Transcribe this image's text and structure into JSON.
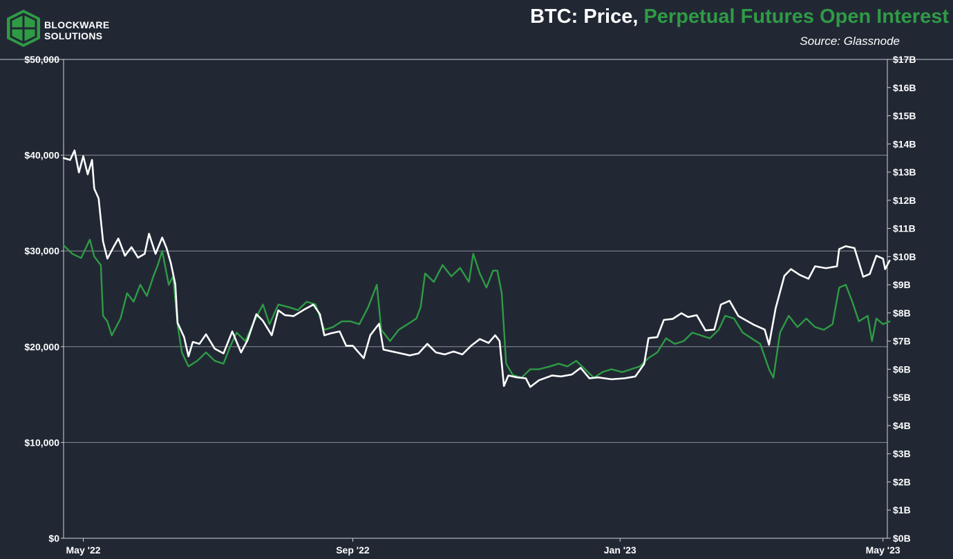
{
  "brand": {
    "line1": "BLOCKWARE",
    "line2": "SOLUTIONS"
  },
  "title": {
    "part1": "BTC: Price, ",
    "part2": "Perpetual Futures Open Interest"
  },
  "source": "Source: Glassnode",
  "colors": {
    "background": "#212834",
    "price": "#ffffff",
    "open_interest": "#2f9b45",
    "grid": "#8a8f99",
    "logo": "#2f9b45"
  },
  "chart_data": {
    "type": "line",
    "title": "BTC: Price, Perpetual Futures Open Interest",
    "grid": true,
    "x_ticks": [
      {
        "label": "May '22",
        "date": "2022-05-01"
      },
      {
        "label": "Sep '22",
        "date": "2022-09-01"
      },
      {
        "label": "Jan '23",
        "date": "2023-01-01"
      },
      {
        "label": "May '23",
        "date": "2023-05-01"
      }
    ],
    "xlim": [
      "2022-04-22",
      "2023-05-03"
    ],
    "y_left": {
      "ylim": [
        0,
        50000
      ],
      "ticks": [
        0,
        10000,
        20000,
        30000,
        40000,
        50000
      ],
      "tick_labels": [
        "$0",
        "$10,000",
        "$20,000",
        "$30,000",
        "$40,000",
        "$50,000"
      ]
    },
    "y_right": {
      "ylim": [
        0,
        17
      ],
      "ticks": [
        0,
        1,
        2,
        3,
        4,
        5,
        6,
        7,
        8,
        9,
        10,
        11,
        12,
        13,
        14,
        15,
        16,
        17
      ],
      "tick_labels": [
        "$0B",
        "$1B",
        "$2B",
        "$3B",
        "$4B",
        "$5B",
        "$6B",
        "$7B",
        "$8B",
        "$9B",
        "$10B",
        "$11B",
        "$12B",
        "$13B",
        "$14B",
        "$15B",
        "$16B",
        "$17B"
      ]
    },
    "series": [
      {
        "axis": "left",
        "color": "#ffffff",
        "points": [
          [
            "2022-04-22",
            39700
          ],
          [
            "2022-04-25",
            39500
          ],
          [
            "2022-04-27",
            40500
          ],
          [
            "2022-04-29",
            38200
          ],
          [
            "2022-05-01",
            39900
          ],
          [
            "2022-05-03",
            38000
          ],
          [
            "2022-05-05",
            39500
          ],
          [
            "2022-05-06",
            36500
          ],
          [
            "2022-05-08",
            35500
          ],
          [
            "2022-05-10",
            31000
          ],
          [
            "2022-05-12",
            29200
          ],
          [
            "2022-05-15",
            30500
          ],
          [
            "2022-05-17",
            31300
          ],
          [
            "2022-05-20",
            29500
          ],
          [
            "2022-05-23",
            30400
          ],
          [
            "2022-05-26",
            29300
          ],
          [
            "2022-05-29",
            29700
          ],
          [
            "2022-05-31",
            31800
          ],
          [
            "2022-06-03",
            29700
          ],
          [
            "2022-06-06",
            31400
          ],
          [
            "2022-06-08",
            30300
          ],
          [
            "2022-06-10",
            28700
          ],
          [
            "2022-06-12",
            26500
          ],
          [
            "2022-06-13",
            22500
          ],
          [
            "2022-06-16",
            21000
          ],
          [
            "2022-06-18",
            19000
          ],
          [
            "2022-06-20",
            20500
          ],
          [
            "2022-06-23",
            20300
          ],
          [
            "2022-06-26",
            21300
          ],
          [
            "2022-06-30",
            19800
          ],
          [
            "2022-07-04",
            19300
          ],
          [
            "2022-07-08",
            21600
          ],
          [
            "2022-07-12",
            19400
          ],
          [
            "2022-07-15",
            20700
          ],
          [
            "2022-07-19",
            23400
          ],
          [
            "2022-07-22",
            22700
          ],
          [
            "2022-07-26",
            21200
          ],
          [
            "2022-07-29",
            23800
          ],
          [
            "2022-08-01",
            23300
          ],
          [
            "2022-08-05",
            23200
          ],
          [
            "2022-08-10",
            23900
          ],
          [
            "2022-08-14",
            24400
          ],
          [
            "2022-08-17",
            23400
          ],
          [
            "2022-08-19",
            21200
          ],
          [
            "2022-08-22",
            21400
          ],
          [
            "2022-08-26",
            21600
          ],
          [
            "2022-08-29",
            20100
          ],
          [
            "2022-09-01",
            20100
          ],
          [
            "2022-09-06",
            18800
          ],
          [
            "2022-09-09",
            21200
          ],
          [
            "2022-09-13",
            22400
          ],
          [
            "2022-09-15",
            19700
          ],
          [
            "2022-09-19",
            19500
          ],
          [
            "2022-09-23",
            19300
          ],
          [
            "2022-09-27",
            19100
          ],
          [
            "2022-10-01",
            19300
          ],
          [
            "2022-10-05",
            20300
          ],
          [
            "2022-10-09",
            19400
          ],
          [
            "2022-10-13",
            19200
          ],
          [
            "2022-10-17",
            19500
          ],
          [
            "2022-10-21",
            19200
          ],
          [
            "2022-10-25",
            20100
          ],
          [
            "2022-10-29",
            20800
          ],
          [
            "2022-11-02",
            20400
          ],
          [
            "2022-11-05",
            21200
          ],
          [
            "2022-11-07",
            20600
          ],
          [
            "2022-11-09",
            15900
          ],
          [
            "2022-11-11",
            17000
          ],
          [
            "2022-11-15",
            16800
          ],
          [
            "2022-11-19",
            16700
          ],
          [
            "2022-11-21",
            15800
          ],
          [
            "2022-11-25",
            16500
          ],
          [
            "2022-12-01",
            17000
          ],
          [
            "2022-12-05",
            16900
          ],
          [
            "2022-12-10",
            17100
          ],
          [
            "2022-12-14",
            17800
          ],
          [
            "2022-12-18",
            16700
          ],
          [
            "2022-12-22",
            16800
          ],
          [
            "2022-12-28",
            16600
          ],
          [
            "2023-01-03",
            16700
          ],
          [
            "2023-01-08",
            16900
          ],
          [
            "2023-01-12",
            18200
          ],
          [
            "2023-01-14",
            20900
          ],
          [
            "2023-01-18",
            21000
          ],
          [
            "2023-01-21",
            22800
          ],
          [
            "2023-01-25",
            22900
          ],
          [
            "2023-01-29",
            23500
          ],
          [
            "2023-02-01",
            23100
          ],
          [
            "2023-02-05",
            23300
          ],
          [
            "2023-02-09",
            21700
          ],
          [
            "2023-02-13",
            21800
          ],
          [
            "2023-02-16",
            24400
          ],
          [
            "2023-02-20",
            24800
          ],
          [
            "2023-02-24",
            23200
          ],
          [
            "2023-03-03",
            22300
          ],
          [
            "2023-03-08",
            21800
          ],
          [
            "2023-03-10",
            20200
          ],
          [
            "2023-03-13",
            24000
          ],
          [
            "2023-03-17",
            27400
          ],
          [
            "2023-03-20",
            28100
          ],
          [
            "2023-03-24",
            27500
          ],
          [
            "2023-03-28",
            27100
          ],
          [
            "2023-03-31",
            28400
          ],
          [
            "2023-04-05",
            28200
          ],
          [
            "2023-04-10",
            28400
          ],
          [
            "2023-04-11",
            30200
          ],
          [
            "2023-04-14",
            30500
          ],
          [
            "2023-04-18",
            30300
          ],
          [
            "2023-04-20",
            28800
          ],
          [
            "2023-04-22",
            27300
          ],
          [
            "2023-04-25",
            27600
          ],
          [
            "2023-04-28",
            29500
          ],
          [
            "2023-05-01",
            29200
          ],
          [
            "2023-05-02",
            28100
          ],
          [
            "2023-05-04",
            29000
          ]
        ]
      },
      {
        "axis": "right",
        "color": "#2f9b45",
        "points": [
          [
            "2022-04-22",
            10.4
          ],
          [
            "2022-04-26",
            10.1
          ],
          [
            "2022-04-30",
            9.95
          ],
          [
            "2022-05-04",
            10.6
          ],
          [
            "2022-05-06",
            10.0
          ],
          [
            "2022-05-09",
            9.7
          ],
          [
            "2022-05-10",
            7.9
          ],
          [
            "2022-05-12",
            7.7
          ],
          [
            "2022-05-14",
            7.2
          ],
          [
            "2022-05-18",
            7.8
          ],
          [
            "2022-05-21",
            8.7
          ],
          [
            "2022-05-24",
            8.4
          ],
          [
            "2022-05-27",
            9.0
          ],
          [
            "2022-05-30",
            8.6
          ],
          [
            "2022-06-02",
            9.3
          ],
          [
            "2022-06-04",
            9.7
          ],
          [
            "2022-06-06",
            10.2
          ],
          [
            "2022-06-09",
            9.0
          ],
          [
            "2022-06-11",
            9.3
          ],
          [
            "2022-06-13",
            7.6
          ],
          [
            "2022-06-15",
            6.6
          ],
          [
            "2022-06-18",
            6.1
          ],
          [
            "2022-06-22",
            6.3
          ],
          [
            "2022-06-26",
            6.6
          ],
          [
            "2022-06-30",
            6.3
          ],
          [
            "2022-07-04",
            6.2
          ],
          [
            "2022-07-07",
            6.8
          ],
          [
            "2022-07-10",
            7.3
          ],
          [
            "2022-07-14",
            7.0
          ],
          [
            "2022-07-18",
            7.7
          ],
          [
            "2022-07-22",
            8.3
          ],
          [
            "2022-07-25",
            7.6
          ],
          [
            "2022-07-29",
            8.3
          ],
          [
            "2022-08-03",
            8.2
          ],
          [
            "2022-08-07",
            8.1
          ],
          [
            "2022-08-11",
            8.4
          ],
          [
            "2022-08-15",
            8.3
          ],
          [
            "2022-08-19",
            7.4
          ],
          [
            "2022-08-23",
            7.5
          ],
          [
            "2022-08-27",
            7.7
          ],
          [
            "2022-08-31",
            7.7
          ],
          [
            "2022-09-04",
            7.6
          ],
          [
            "2022-09-08",
            8.2
          ],
          [
            "2022-09-12",
            9.0
          ],
          [
            "2022-09-14",
            7.4
          ],
          [
            "2022-09-18",
            7.0
          ],
          [
            "2022-09-22",
            7.4
          ],
          [
            "2022-09-26",
            7.6
          ],
          [
            "2022-09-30",
            7.8
          ],
          [
            "2022-10-02",
            8.2
          ],
          [
            "2022-10-04",
            9.4
          ],
          [
            "2022-10-08",
            9.1
          ],
          [
            "2022-10-12",
            9.7
          ],
          [
            "2022-10-16",
            9.3
          ],
          [
            "2022-10-20",
            9.6
          ],
          [
            "2022-10-24",
            9.1
          ],
          [
            "2022-10-26",
            10.1
          ],
          [
            "2022-10-29",
            9.4
          ],
          [
            "2022-11-01",
            8.9
          ],
          [
            "2022-11-04",
            9.5
          ],
          [
            "2022-11-06",
            9.5
          ],
          [
            "2022-11-08",
            8.7
          ],
          [
            "2022-11-10",
            6.2
          ],
          [
            "2022-11-13",
            5.8
          ],
          [
            "2022-11-17",
            5.7
          ],
          [
            "2022-11-21",
            6.0
          ],
          [
            "2022-11-25",
            6.0
          ],
          [
            "2022-11-30",
            6.1
          ],
          [
            "2022-12-04",
            6.2
          ],
          [
            "2022-12-08",
            6.1
          ],
          [
            "2022-12-12",
            6.3
          ],
          [
            "2022-12-16",
            6.0
          ],
          [
            "2022-12-20",
            5.7
          ],
          [
            "2022-12-24",
            5.9
          ],
          [
            "2022-12-28",
            6.0
          ],
          [
            "2023-01-02",
            5.9
          ],
          [
            "2023-01-06",
            6.0
          ],
          [
            "2023-01-10",
            6.1
          ],
          [
            "2023-01-14",
            6.4
          ],
          [
            "2023-01-18",
            6.6
          ],
          [
            "2023-01-22",
            7.1
          ],
          [
            "2023-01-26",
            6.9
          ],
          [
            "2023-01-30",
            7.0
          ],
          [
            "2023-02-03",
            7.3
          ],
          [
            "2023-02-07",
            7.2
          ],
          [
            "2023-02-11",
            7.1
          ],
          [
            "2023-02-15",
            7.4
          ],
          [
            "2023-02-18",
            7.9
          ],
          [
            "2023-02-22",
            7.8
          ],
          [
            "2023-02-26",
            7.3
          ],
          [
            "2023-03-02",
            7.1
          ],
          [
            "2023-03-06",
            6.9
          ],
          [
            "2023-03-10",
            6.0
          ],
          [
            "2023-03-12",
            5.7
          ],
          [
            "2023-03-15",
            7.3
          ],
          [
            "2023-03-19",
            7.9
          ],
          [
            "2023-03-23",
            7.5
          ],
          [
            "2023-03-27",
            7.8
          ],
          [
            "2023-03-31",
            7.5
          ],
          [
            "2023-04-04",
            7.4
          ],
          [
            "2023-04-08",
            7.6
          ],
          [
            "2023-04-11",
            8.9
          ],
          [
            "2023-04-14",
            9.0
          ],
          [
            "2023-04-17",
            8.4
          ],
          [
            "2023-04-20",
            7.7
          ],
          [
            "2023-04-24",
            7.9
          ],
          [
            "2023-04-26",
            7.0
          ],
          [
            "2023-04-28",
            7.8
          ],
          [
            "2023-05-01",
            7.6
          ],
          [
            "2023-05-04",
            7.7
          ]
        ]
      }
    ]
  }
}
